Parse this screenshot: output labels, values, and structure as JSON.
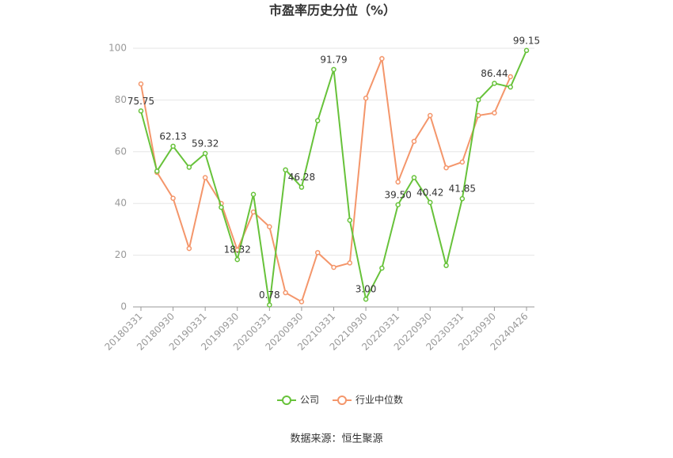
{
  "chart_data": {
    "type": "line",
    "title": "市盈率历史分位（%）",
    "categories": [
      "20180331",
      null,
      "20180930",
      null,
      "20190331",
      null,
      "20190930",
      null,
      "20200331",
      null,
      "20200930",
      null,
      "20210331",
      null,
      "20210930",
      null,
      "20220331",
      null,
      "20220930",
      null,
      "20230331",
      null,
      "20230930",
      null,
      "20240426"
    ],
    "series": [
      {
        "name": "公司",
        "color": "#67c23a",
        "values": [
          75.75,
          52.5,
          62.13,
          54,
          59.32,
          38.5,
          18.32,
          43.5,
          0.78,
          53,
          46.28,
          72,
          91.79,
          33.5,
          3.0,
          15,
          39.5,
          50,
          40.42,
          16,
          41.85,
          80,
          86.44,
          85,
          99.15
        ],
        "value_labels": [
          "75.75",
          null,
          "62.13",
          null,
          "59.32",
          null,
          "18.32",
          null,
          "0.78",
          null,
          "46.28",
          null,
          "91.79",
          null,
          "3.00",
          null,
          "39.50",
          null,
          "40.42",
          null,
          "41.85",
          null,
          "86.44",
          null,
          "99.15"
        ]
      },
      {
        "name": "行业中位数",
        "color": "#f4966b",
        "values": [
          86.2,
          52,
          42,
          22.6,
          50,
          40,
          22,
          36.7,
          31,
          5.5,
          2,
          21,
          15.3,
          17,
          80.7,
          96,
          48.3,
          64,
          74,
          53.8,
          56,
          74,
          75,
          89,
          null
        ]
      }
    ],
    "ylim": [
      0,
      100
    ],
    "yticks": [
      0,
      20,
      40,
      60,
      80,
      100
    ],
    "grid": true,
    "source": "数据来源：恒生聚源"
  }
}
